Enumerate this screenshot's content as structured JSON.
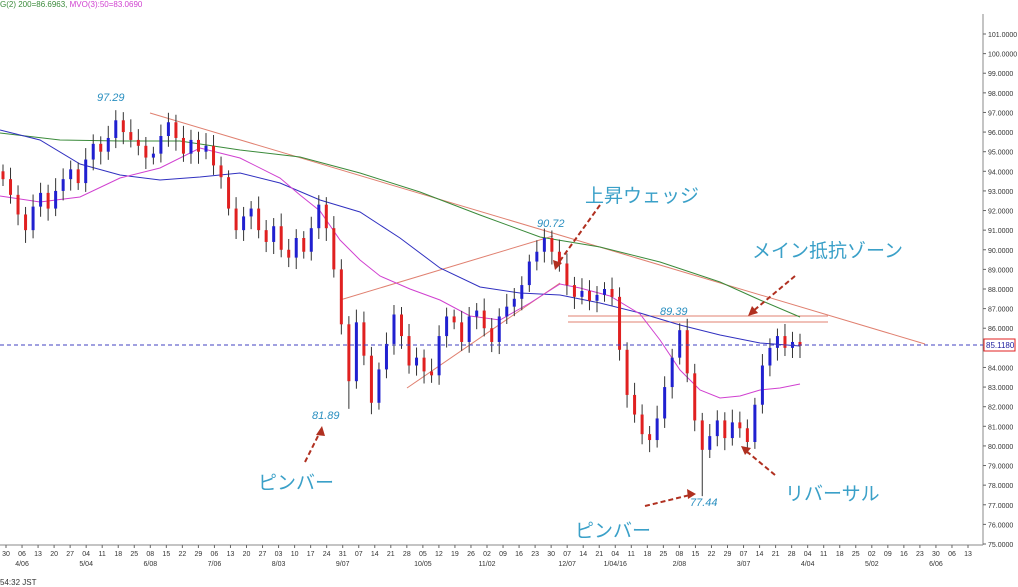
{
  "legend": {
    "ma200": "G(2) 200=86.6963,",
    "mvo": "MVO(3):50=83.0690"
  },
  "timezone": "54:32 JST",
  "annotations": {
    "rising_wedge": "上昇ウェッジ",
    "main_resistance": "メイン抵抗ゾーン",
    "pinbar_1": "ピンバー",
    "pinbar_2": "ピンバー",
    "reversal": "リバーサル"
  },
  "price_labels": {
    "p1": "97.29",
    "p2": "90.72",
    "p3": "89.39",
    "p4": "81.89",
    "p5": "77.44",
    "current": "85.1180"
  },
  "colors": {
    "up": "#2020d0",
    "down": "#e02020",
    "ma_blue": "#3030c0",
    "ma_green": "#3a8a3a",
    "ma_magenta": "#d040d0",
    "trend": "#e08070",
    "annotation": "#3aa0c8",
    "arrow": "#b03020"
  },
  "chart_data": {
    "type": "candlestick",
    "ylim": [
      75.0,
      102.0
    ],
    "y_ticks": [
      "75.0000",
      "76.0000",
      "77.0000",
      "78.0000",
      "79.0000",
      "80.0000",
      "81.0000",
      "82.0000",
      "83.0000",
      "84.0000",
      "85.0000",
      "86.0000",
      "87.0000",
      "88.0000",
      "89.0000",
      "90.0000",
      "91.0000",
      "92.0000",
      "93.0000",
      "94.0000",
      "95.0000",
      "96.0000",
      "97.0000",
      "98.0000",
      "99.0000",
      "100.0000",
      "101.0000"
    ],
    "x_day_ticks": [
      "30",
      "06",
      "13",
      "20",
      "27",
      "04",
      "11",
      "18",
      "25",
      "08",
      "15",
      "22",
      "29",
      "06",
      "13",
      "20",
      "27",
      "03",
      "10",
      "17",
      "24",
      "31",
      "07",
      "14",
      "21",
      "28",
      "05",
      "12",
      "19",
      "26",
      "02",
      "09",
      "16",
      "23",
      "30",
      "07",
      "14",
      "21",
      "04",
      "11",
      "18",
      "25",
      "08",
      "15",
      "22",
      "29",
      "07",
      "14",
      "21",
      "28",
      "04",
      "11",
      "18",
      "25",
      "02",
      "09",
      "16",
      "23",
      "30",
      "06",
      "13"
    ],
    "x_month_labels": [
      "4/06",
      "5/04",
      "6/08",
      "7/06",
      "8/03",
      "9/07",
      "10/05",
      "11/02",
      "12/07",
      "1/04/16",
      "2/08",
      "3/07",
      "4/04",
      "5/02",
      "6/06"
    ],
    "key_levels": {
      "high": 97.29,
      "wedge_top": 90.72,
      "resistance": 89.39,
      "pinbar_low_1": 81.89,
      "pinbar_low_2": 77.44,
      "current": 85.118
    },
    "ma200_value": 86.6963,
    "mvo50_value": 83.069,
    "closes": [
      93.6,
      92.8,
      91.8,
      91.0,
      92.2,
      92.9,
      92.1,
      93.0,
      93.6,
      94.1,
      93.4,
      94.6,
      95.4,
      95.0,
      95.7,
      96.6,
      96.0,
      95.6,
      95.3,
      94.7,
      94.9,
      95.8,
      96.5,
      95.7,
      94.9,
      95.6,
      95.0,
      95.3,
      94.3,
      93.7,
      92.1,
      91.0,
      91.7,
      92.1,
      91.0,
      90.4,
      91.2,
      90.0,
      89.6,
      90.6,
      89.9,
      91.1,
      92.3,
      91.1,
      89.0,
      86.2,
      83.3,
      86.3,
      84.6,
      82.2,
      83.9,
      85.2,
      86.7,
      85.6,
      84.1,
      84.5,
      83.8,
      83.6,
      85.6,
      86.6,
      86.3,
      85.3,
      86.6,
      86.9,
      86.0,
      85.3,
      86.6,
      87.1,
      87.5,
      88.2,
      89.4,
      89.9,
      90.6,
      89.9,
      89.3,
      88.2,
      87.6,
      87.9,
      87.4,
      87.7,
      88.0,
      87.6,
      84.9,
      82.6,
      81.6,
      80.6,
      80.3,
      81.4,
      83.0,
      84.5,
      85.9,
      83.7,
      81.3,
      79.8,
      80.5,
      81.3,
      80.4,
      81.2,
      80.9,
      80.2,
      82.1,
      84.1,
      85.0,
      85.6,
      85.0,
      85.3,
      85.1
    ]
  }
}
